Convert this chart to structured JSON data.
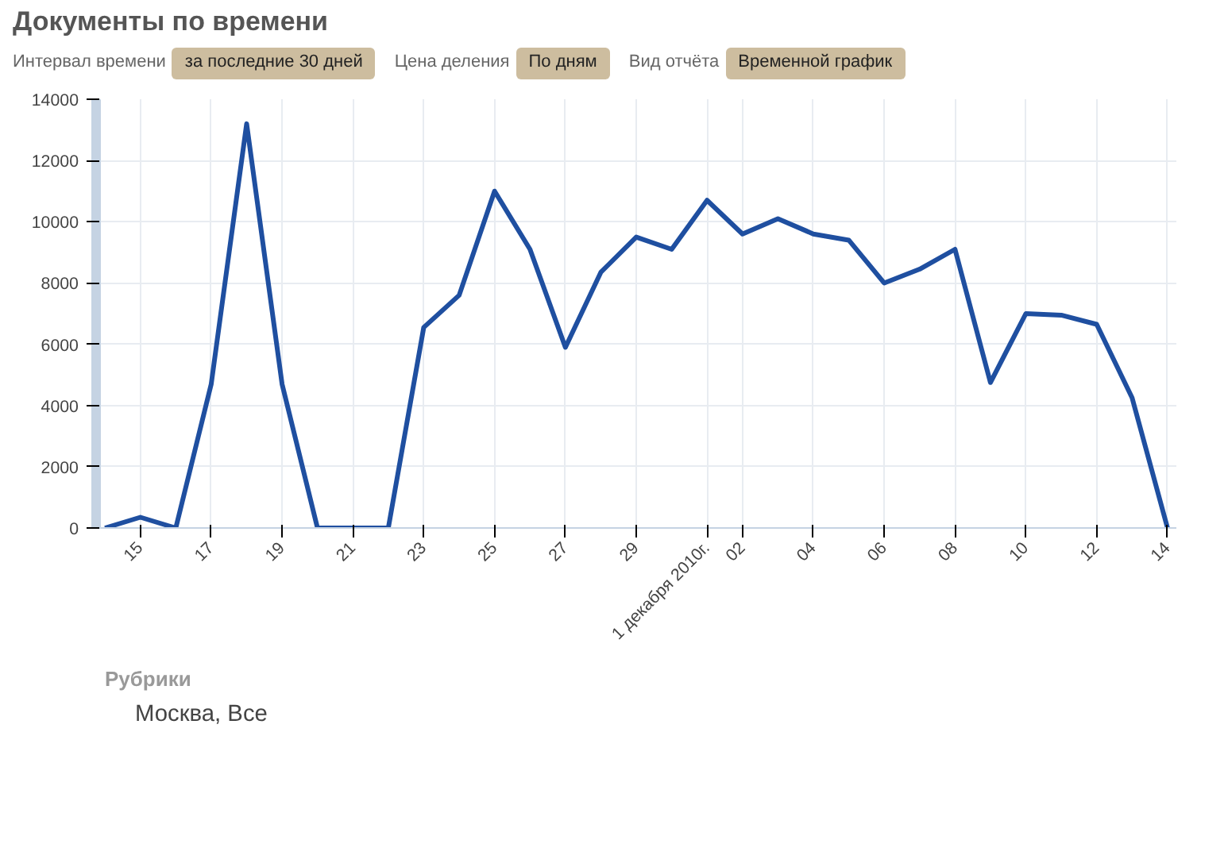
{
  "chart_data": {
    "type": "line",
    "title": "Документы по времени",
    "annotations": [
      "Интервал времени",
      "за последние 30 дней",
      "Цена деления",
      "По дням",
      "Вид отчёта",
      "Временной график"
    ],
    "legend_title": "Рубрики",
    "x": [
      "2010-11-14",
      "2010-11-15",
      "2010-11-16",
      "2010-11-17",
      "2010-11-18",
      "2010-11-19",
      "2010-11-20",
      "2010-11-21",
      "2010-11-22",
      "2010-11-23",
      "2010-11-24",
      "2010-11-25",
      "2010-11-26",
      "2010-11-27",
      "2010-11-28",
      "2010-11-29",
      "2010-11-30",
      "2010-12-01",
      "2010-12-02",
      "2010-12-03",
      "2010-12-04",
      "2010-12-05",
      "2010-12-06",
      "2010-12-07",
      "2010-12-08",
      "2010-12-09",
      "2010-12-10",
      "2010-12-11",
      "2010-12-12",
      "2010-12-13",
      "2010-12-14"
    ],
    "series": [
      {
        "name": "Москва, Все",
        "color": "#1f4fa0",
        "values": [
          0,
          350,
          0,
          4700,
          13200,
          4700,
          0,
          0,
          0,
          6550,
          7600,
          11000,
          9100,
          5900,
          8350,
          9500,
          9100,
          10700,
          9600,
          10100,
          9600,
          9400,
          8000,
          8450,
          9100,
          4750,
          7000,
          6950,
          6650,
          4250,
          0
        ]
      }
    ],
    "xlim": [
      "2010-11-13T18:00",
      "2010-12-14T06:00"
    ],
    "xticks": [
      {
        "value": "2010-11-15",
        "label": "15"
      },
      {
        "value": "2010-11-17",
        "label": "17"
      },
      {
        "value": "2010-11-19",
        "label": "19"
      },
      {
        "value": "2010-11-21",
        "label": "21"
      },
      {
        "value": "2010-11-23",
        "label": "23"
      },
      {
        "value": "2010-11-25",
        "label": "25"
      },
      {
        "value": "2010-11-27",
        "label": "27"
      },
      {
        "value": "2010-11-29",
        "label": "29"
      },
      {
        "value": "2010-12-01",
        "label": "1 декабря 2010г."
      },
      {
        "value": "2010-12-02",
        "label": "02"
      },
      {
        "value": "2010-12-04",
        "label": "04"
      },
      {
        "value": "2010-12-06",
        "label": "06"
      },
      {
        "value": "2010-12-08",
        "label": "08"
      },
      {
        "value": "2010-12-10",
        "label": "10"
      },
      {
        "value": "2010-12-12",
        "label": "12"
      },
      {
        "value": "2010-12-14",
        "label": "14"
      }
    ],
    "ylim": [
      0,
      14000
    ],
    "yticks": [
      0,
      2000,
      4000,
      6000,
      8000,
      10000,
      12000,
      14000
    ],
    "grid": true,
    "legend": "bottom",
    "marker": "none",
    "line_style": "solid"
  }
}
